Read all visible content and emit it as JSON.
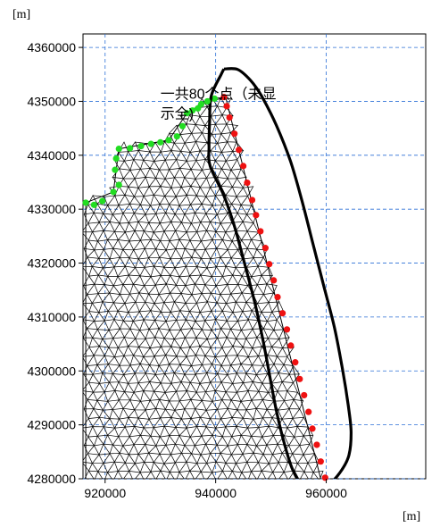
{
  "chart_data": {
    "type": "scatter",
    "title": "",
    "xlabel": "[m]",
    "ylabel": "[m]",
    "xlim": [
      916000,
      978000
    ],
    "ylim": [
      4280000,
      4362500
    ],
    "x_ticks": [
      920000,
      940000,
      960000
    ],
    "x_tick_labels": [
      "920000",
      "940000",
      "960000"
    ],
    "y_ticks": [
      4280000,
      4290000,
      4300000,
      4310000,
      4320000,
      4330000,
      4340000,
      4350000,
      4360000
    ],
    "y_tick_labels": [
      "4280000",
      "4290000",
      "4300000",
      "4310000",
      "4320000",
      "4330000",
      "4340000",
      "4350000",
      "4360000"
    ],
    "grid": true,
    "grid_style": "dashed",
    "annotation": {
      "lines": [
        "一共80个点（未显",
        "示全)"
      ],
      "x": 930000,
      "y": 4350500
    },
    "mesh": {
      "boundary": [
        [
          916500,
          4331200
        ],
        [
          921500,
          4333200
        ],
        [
          922500,
          4341200
        ],
        [
          931500,
          4342800
        ],
        [
          934800,
          4347800
        ],
        [
          937400,
          4349500
        ],
        [
          941800,
          4350800
        ],
        [
          959000,
          4280000
        ],
        [
          916500,
          4280000
        ]
      ]
    },
    "series": [
      {
        "color": "#22dd22",
        "marker": "dot",
        "points": [
          [
            916500,
            4331200
          ],
          [
            918000,
            4330800
          ],
          [
            919500,
            4331500
          ],
          [
            921500,
            4333200
          ],
          [
            922500,
            4334500
          ],
          [
            921800,
            4337300
          ],
          [
            922000,
            4339400
          ],
          [
            922500,
            4341200
          ],
          [
            924500,
            4341300
          ],
          [
            926500,
            4341700
          ],
          [
            928300,
            4342100
          ],
          [
            930000,
            4342400
          ],
          [
            931500,
            4342800
          ],
          [
            933000,
            4343500
          ],
          [
            934000,
            4345400
          ],
          [
            934800,
            4347800
          ],
          [
            935800,
            4348300
          ],
          [
            936800,
            4348700
          ],
          [
            937400,
            4349500
          ],
          [
            938500,
            4350000
          ],
          [
            939800,
            4350500
          ]
        ]
      },
      {
        "color": "#ee1111",
        "marker": "dot",
        "points": [
          [
            941500,
            4350800
          ],
          [
            942000,
            4349100
          ],
          [
            942500,
            4347000
          ],
          [
            943400,
            4344000
          ],
          [
            944200,
            4341000
          ],
          [
            945000,
            4338000
          ],
          [
            945700,
            4334900
          ],
          [
            946600,
            4331700
          ],
          [
            947300,
            4328900
          ],
          [
            948100,
            4325900
          ],
          [
            949000,
            4322800
          ],
          [
            949700,
            4319800
          ],
          [
            950500,
            4316800
          ],
          [
            951200,
            4313700
          ],
          [
            952100,
            4310700
          ],
          [
            952900,
            4307700
          ],
          [
            953600,
            4304700
          ],
          [
            954400,
            4301600
          ],
          [
            955200,
            4298500
          ],
          [
            956000,
            4295500
          ],
          [
            956800,
            4292400
          ],
          [
            957500,
            4289300
          ],
          [
            958300,
            4286300
          ],
          [
            959000,
            4283200
          ],
          [
            959800,
            4280200
          ]
        ]
      }
    ],
    "outline": {
      "color": "#000000",
      "points": [
        [
          941500,
          4356000
        ],
        [
          944000,
          4355900
        ],
        [
          946300,
          4353900
        ],
        [
          948300,
          4351000
        ],
        [
          951000,
          4345500
        ],
        [
          953500,
          4339000
        ],
        [
          955500,
          4332000
        ],
        [
          957500,
          4324000
        ],
        [
          959500,
          4316000
        ],
        [
          961500,
          4308000
        ],
        [
          963000,
          4300000
        ],
        [
          964000,
          4293500
        ],
        [
          964500,
          4288500
        ],
        [
          964000,
          4284000
        ],
        [
          962000,
          4280500
        ],
        [
          959500,
          4278300
        ],
        [
          957500,
          4278000
        ],
        [
          955500,
          4279000
        ],
        [
          953800,
          4282000
        ],
        [
          952300,
          4287000
        ],
        [
          951000,
          4292500
        ],
        [
          949800,
          4299000
        ],
        [
          948500,
          4306000
        ],
        [
          947000,
          4313000
        ],
        [
          945200,
          4320000
        ],
        [
          943500,
          4326500
        ],
        [
          941500,
          4332500
        ],
        [
          939000,
          4338000
        ],
        [
          938800,
          4341500
        ],
        [
          938900,
          4346000
        ],
        [
          939200,
          4351000
        ],
        [
          941000,
          4355000
        ],
        [
          941500,
          4356000
        ]
      ]
    }
  }
}
